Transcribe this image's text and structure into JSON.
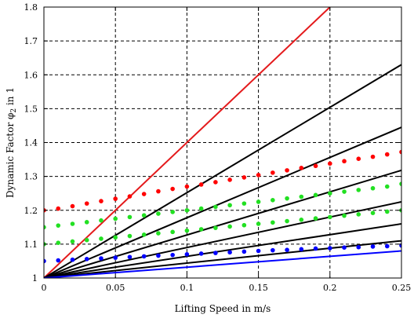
{
  "chart_data": {
    "type": "line",
    "title": "",
    "xlabel": "Lifting Speed in m/s",
    "ylabel": "Dynamic Factor φ",
    "ylabel_sub": "2",
    "ylabel_suffix": " in 1",
    "xlim": [
      0,
      0.25
    ],
    "ylim": [
      1,
      1.8
    ],
    "x_ticks": [
      "0",
      "0.05",
      "0.1",
      "0.15",
      "0.2",
      "0.25"
    ],
    "y_ticks": [
      "1",
      "1.1",
      "1.2",
      "1.3",
      "1.4",
      "1.5",
      "1.6",
      "1.7",
      "1.8"
    ],
    "grid": true,
    "lines": [
      {
        "color": "#e41a1c",
        "x": [
          0,
          0.2
        ],
        "y": [
          1.0,
          1.8
        ]
      },
      {
        "color": "#000000",
        "x": [
          0,
          0.25
        ],
        "y": [
          1.0,
          1.63
        ]
      },
      {
        "color": "#000000",
        "x": [
          0,
          0.25
        ],
        "y": [
          1.0,
          1.445
        ]
      },
      {
        "color": "#000000",
        "x": [
          0,
          0.25
        ],
        "y": [
          1.0,
          1.318
        ]
      },
      {
        "color": "#000000",
        "x": [
          0,
          0.25
        ],
        "y": [
          1.0,
          1.225
        ]
      },
      {
        "color": "#000000",
        "x": [
          0,
          0.25
        ],
        "y": [
          1.0,
          1.16
        ]
      },
      {
        "color": "#000000",
        "x": [
          0,
          0.25
        ],
        "y": [
          1.0,
          1.11
        ]
      },
      {
        "color": "#0000ff",
        "x": [
          0,
          0.25
        ],
        "y": [
          1.0,
          1.08
        ]
      }
    ],
    "scatter": [
      {
        "color": "#ff0000",
        "x": [
          0,
          0.01,
          0.02,
          0.03,
          0.04,
          0.05,
          0.06,
          0.07,
          0.08,
          0.09,
          0.1,
          0.11,
          0.12,
          0.13,
          0.14,
          0.15,
          0.16,
          0.17,
          0.18,
          0.19,
          0.2,
          0.21,
          0.22,
          0.23,
          0.24,
          0.25
        ],
        "y": [
          1.2,
          1.205,
          1.212,
          1.22,
          1.227,
          1.234,
          1.241,
          1.248,
          1.256,
          1.263,
          1.27,
          1.276,
          1.283,
          1.29,
          1.297,
          1.304,
          1.311,
          1.318,
          1.325,
          1.331,
          1.338,
          1.345,
          1.352,
          1.358,
          1.365,
          1.372
        ]
      },
      {
        "color": "#22e022",
        "x": [
          0,
          0.01,
          0.02,
          0.03,
          0.04,
          0.05,
          0.06,
          0.07,
          0.08,
          0.09,
          0.1,
          0.11,
          0.12,
          0.13,
          0.14,
          0.15,
          0.16,
          0.17,
          0.18,
          0.19,
          0.2,
          0.21,
          0.22,
          0.23,
          0.24,
          0.25
        ],
        "y": [
          1.15,
          1.155,
          1.16,
          1.165,
          1.17,
          1.175,
          1.18,
          1.185,
          1.19,
          1.195,
          1.2,
          1.205,
          1.21,
          1.215,
          1.22,
          1.225,
          1.23,
          1.235,
          1.24,
          1.245,
          1.25,
          1.255,
          1.26,
          1.265,
          1.27,
          1.278
        ]
      },
      {
        "color": "#22e022",
        "x": [
          0,
          0.01,
          0.02,
          0.03,
          0.04,
          0.05,
          0.06,
          0.07,
          0.08,
          0.09,
          0.1,
          0.11,
          0.12,
          0.13,
          0.14,
          0.15,
          0.16,
          0.17,
          0.18,
          0.19,
          0.2,
          0.21,
          0.22,
          0.23,
          0.24,
          0.25
        ],
        "y": [
          1.1,
          1.104,
          1.108,
          1.112,
          1.116,
          1.12,
          1.124,
          1.128,
          1.132,
          1.136,
          1.14,
          1.144,
          1.148,
          1.152,
          1.156,
          1.16,
          1.164,
          1.168,
          1.172,
          1.176,
          1.18,
          1.184,
          1.188,
          1.192,
          1.196,
          1.2
        ]
      },
      {
        "color": "#0000ff",
        "x": [
          0,
          0.01,
          0.02,
          0.03,
          0.04,
          0.05,
          0.06,
          0.07,
          0.08,
          0.09,
          0.1,
          0.11,
          0.12,
          0.13,
          0.14,
          0.15,
          0.16,
          0.17,
          0.18,
          0.19,
          0.2,
          0.21,
          0.22,
          0.23,
          0.24,
          0.25
        ],
        "y": [
          1.05,
          1.052,
          1.054,
          1.056,
          1.058,
          1.06,
          1.062,
          1.064,
          1.066,
          1.068,
          1.07,
          1.072,
          1.074,
          1.076,
          1.078,
          1.08,
          1.082,
          1.083,
          1.085,
          1.087,
          1.088,
          1.09,
          1.091,
          1.093,
          1.094,
          1.096
        ]
      }
    ]
  }
}
